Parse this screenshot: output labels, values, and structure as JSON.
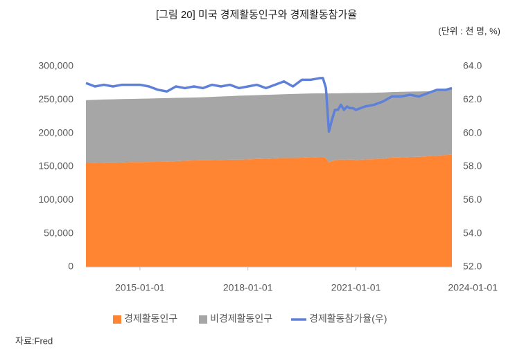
{
  "chart_data": {
    "type": "stacked-area-line",
    "title": "[그림 20] 미국 경제활동인구와 경제활동참가율",
    "unit": "(단위 : 천 명, %)",
    "source": "자료:Fred",
    "x": [
      "2013-07-01",
      "2013-10-01",
      "2014-01-01",
      "2014-04-01",
      "2014-07-01",
      "2014-10-01",
      "2015-01-01",
      "2015-04-01",
      "2015-07-01",
      "2015-10-01",
      "2016-01-01",
      "2016-04-01",
      "2016-07-01",
      "2016-10-01",
      "2017-01-01",
      "2017-04-01",
      "2017-07-01",
      "2017-10-01",
      "2018-01-01",
      "2018-04-01",
      "2018-07-01",
      "2018-10-01",
      "2019-01-01",
      "2019-04-01",
      "2019-07-01",
      "2019-10-01",
      "2020-01-01",
      "2020-02-01",
      "2020-03-01",
      "2020-04-01",
      "2020-05-01",
      "2020-06-01",
      "2020-07-01",
      "2020-08-01",
      "2020-09-01",
      "2020-10-01",
      "2020-11-01",
      "2020-12-01",
      "2021-01-01",
      "2021-04-01",
      "2021-07-01",
      "2021-10-01",
      "2022-01-01",
      "2022-04-01",
      "2022-07-01",
      "2022-10-01",
      "2023-01-01",
      "2023-04-01",
      "2023-07-01",
      "2023-09-01"
    ],
    "series": [
      {
        "name": "경제활동인구",
        "color": "#ff8533",
        "values": [
          155700,
          155500,
          155800,
          156000,
          156300,
          157000,
          157000,
          157100,
          157200,
          157400,
          158300,
          158900,
          159300,
          159600,
          159700,
          160100,
          160500,
          160500,
          161000,
          161500,
          161900,
          162700,
          163000,
          162900,
          163400,
          164000,
          164500,
          164600,
          162900,
          156500,
          158200,
          159900,
          160200,
          160900,
          160100,
          160800,
          160500,
          160600,
          160000,
          160900,
          161200,
          162200,
          163600,
          163900,
          164500,
          164700,
          165500,
          166400,
          167500,
          168000
        ]
      },
      {
        "name": "비경제활동인구",
        "color": "#a6a6a6",
        "values": [
          93800,
          94500,
          94700,
          94700,
          94800,
          94400,
          94600,
          94800,
          95100,
          95200,
          94600,
          94300,
          94200,
          94300,
          94700,
          94900,
          95000,
          95600,
          95600,
          95500,
          95600,
          95200,
          95300,
          95900,
          95800,
          95500,
          95100,
          95000,
          96700,
          103000,
          101400,
          99700,
          99500,
          98900,
          99800,
          99200,
          99600,
          99600,
          100200,
          99400,
          99400,
          98700,
          98000,
          98100,
          97700,
          97800,
          97300,
          96800,
          96700,
          98000
        ]
      },
      {
        "name": "경제활동참가율(우)",
        "color": "#5f80d8",
        "axis": "y2",
        "values": [
          63.0,
          62.8,
          62.9,
          62.8,
          62.9,
          62.9,
          62.9,
          62.8,
          62.6,
          62.5,
          62.8,
          62.7,
          62.8,
          62.7,
          62.9,
          62.8,
          62.9,
          62.7,
          62.8,
          62.9,
          62.7,
          62.9,
          63.1,
          62.8,
          63.2,
          63.2,
          63.3,
          63.3,
          62.7,
          60.1,
          60.8,
          61.4,
          61.4,
          61.7,
          61.4,
          61.6,
          61.5,
          61.5,
          61.4,
          61.6,
          61.7,
          61.9,
          62.2,
          62.2,
          62.3,
          62.2,
          62.4,
          62.6,
          62.6,
          62.7
        ]
      }
    ],
    "xlim": [
      "2013-07-01",
      "2023-09-01"
    ],
    "xticks": [
      "2015-01-01",
      "2018-01-01",
      "2021-01-01",
      "2024-01-01"
    ],
    "ylim": [
      0,
      300000
    ],
    "yticks": [
      0,
      {
        "value": 50000,
        "label": "50,000"
      },
      {
        "value": 100000,
        "label": "100,000"
      },
      {
        "value": 150000,
        "label": "150,000"
      },
      {
        "value": 200000,
        "label": "200,000"
      },
      {
        "value": 250000,
        "label": "250,000"
      },
      {
        "value": 300000,
        "label": "300,000"
      }
    ],
    "y2lim": [
      52,
      64
    ],
    "y2ticks": [
      {
        "value": 52,
        "label": "52.0"
      },
      {
        "value": 54,
        "label": "54.0"
      },
      {
        "value": 56,
        "label": "56.0"
      },
      {
        "value": 58,
        "label": "58.0"
      },
      {
        "value": 60,
        "label": "60.0"
      },
      {
        "value": 62,
        "label": "62.0"
      },
      {
        "value": 64,
        "label": "64.0"
      }
    ],
    "legend": "bottom"
  }
}
